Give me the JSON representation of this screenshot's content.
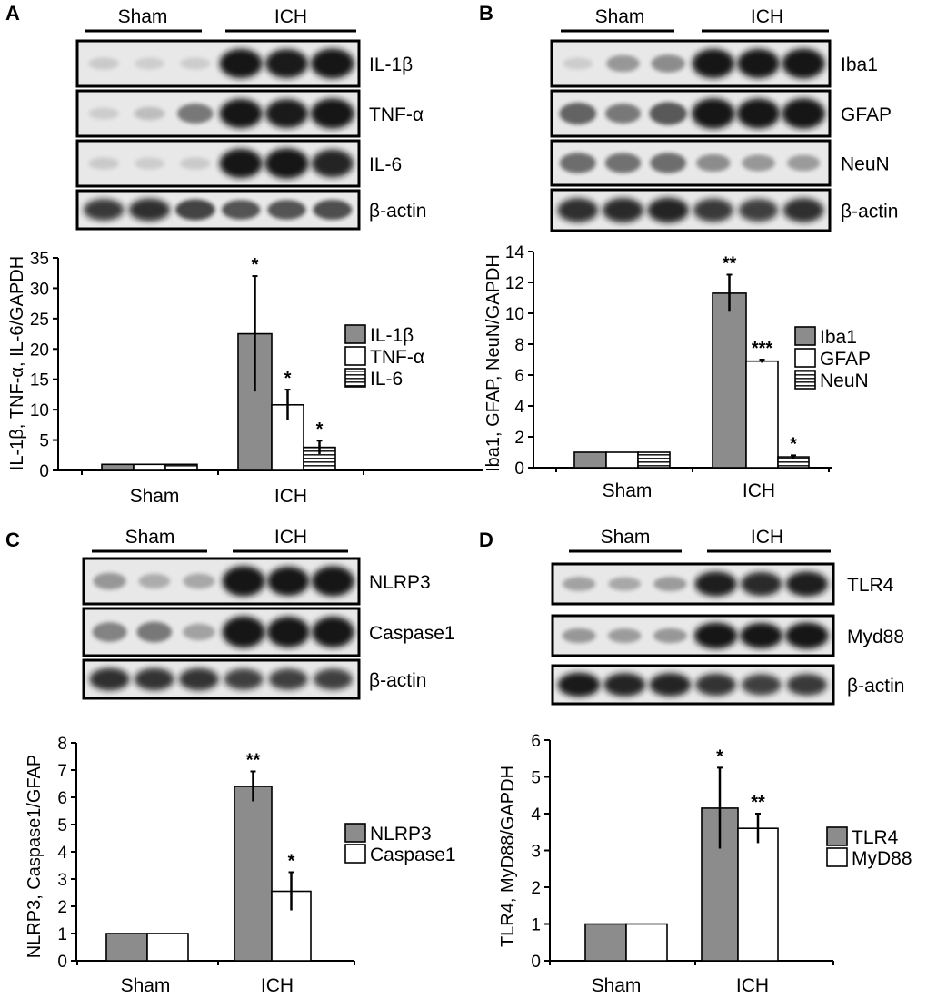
{
  "band_color": "#141414",
  "band_bg": "#e8e8e8",
  "panels": [
    {
      "letter": "A",
      "group_labels": [
        "Sham",
        "ICH"
      ],
      "blot_rows": [
        {
          "label": "IL-1β",
          "intensity": [
            0.06,
            0.04,
            0.05,
            0.92,
            0.9,
            0.95
          ]
        },
        {
          "label": "TNF-α",
          "intensity": [
            0.05,
            0.12,
            0.45,
            0.92,
            0.9,
            0.97
          ]
        },
        {
          "label": "IL-6",
          "intensity": [
            0.06,
            0.05,
            0.06,
            0.92,
            0.98,
            0.85
          ]
        },
        {
          "label": "β-actin",
          "intensity": [
            0.75,
            0.8,
            0.7,
            0.62,
            0.62,
            0.65
          ]
        }
      ]
    },
    {
      "letter": "B",
      "group_labels": [
        "Sham",
        "ICH"
      ],
      "blot_rows": [
        {
          "label": "Iba1",
          "intensity": [
            0.05,
            0.3,
            0.35,
            0.92,
            0.92,
            0.95
          ]
        },
        {
          "label": "GFAP",
          "intensity": [
            0.55,
            0.45,
            0.6,
            0.98,
            0.96,
            0.98
          ]
        },
        {
          "label": "NeuN",
          "intensity": [
            0.5,
            0.48,
            0.5,
            0.35,
            0.3,
            0.28
          ]
        },
        {
          "label": "β-actin",
          "intensity": [
            0.8,
            0.82,
            0.85,
            0.75,
            0.72,
            0.8
          ]
        }
      ]
    },
    {
      "letter": "C",
      "group_labels": [
        "Sham",
        "ICH"
      ],
      "blot_rows": [
        {
          "label": "NLRP3",
          "intensity": [
            0.3,
            0.2,
            0.22,
            0.98,
            0.92,
            0.97
          ]
        },
        {
          "label": "Caspase1",
          "intensity": [
            0.4,
            0.45,
            0.25,
            0.98,
            0.95,
            0.95
          ]
        },
        {
          "label": "β-actin",
          "intensity": [
            0.8,
            0.78,
            0.78,
            0.72,
            0.72,
            0.72
          ]
        }
      ]
    },
    {
      "letter": "D",
      "group_labels": [
        "Sham",
        "ICH"
      ],
      "blot_rows": [
        {
          "label": "TLR4",
          "intensity": [
            0.25,
            0.22,
            0.28,
            0.88,
            0.82,
            0.88
          ]
        },
        {
          "label": "Myd88",
          "intensity": [
            0.3,
            0.28,
            0.3,
            0.95,
            0.92,
            0.96
          ]
        },
        {
          "label": "β-actin",
          "intensity": [
            0.9,
            0.85,
            0.85,
            0.78,
            0.72,
            0.75
          ]
        }
      ]
    }
  ],
  "chart_data": [
    {
      "type": "bar",
      "panel": "A",
      "categories": [
        "Sham",
        "ICH"
      ],
      "ylabel": "IL-1β, TNF-α, IL-6/GAPDH",
      "ylim": [
        0,
        35
      ],
      "yticks": [
        0,
        5,
        10,
        15,
        20,
        25,
        30,
        35
      ],
      "legend_position": "right",
      "series": [
        {
          "name": "IL-1β",
          "fill": "gray",
          "values": [
            1,
            22.5
          ],
          "errors": [
            0,
            9.5
          ],
          "stars": [
            "",
            "*"
          ]
        },
        {
          "name": "TNF-α",
          "fill": "white",
          "values": [
            1,
            10.8
          ],
          "errors": [
            0,
            2.5
          ],
          "stars": [
            "",
            "*"
          ]
        },
        {
          "name": "IL-6",
          "fill": "hatched",
          "values": [
            1,
            3.8
          ],
          "errors": [
            0,
            1.1
          ],
          "stars": [
            "",
            "*"
          ]
        }
      ]
    },
    {
      "type": "bar",
      "panel": "B",
      "categories": [
        "Sham",
        "ICH"
      ],
      "ylabel": "Iba1, GFAP, NeuN/GAPDH",
      "ylim": [
        0,
        14
      ],
      "yticks": [
        0,
        2,
        4,
        6,
        8,
        10,
        12,
        14
      ],
      "legend_position": "right",
      "series": [
        {
          "name": "Iba1",
          "fill": "gray",
          "values": [
            1,
            11.3
          ],
          "errors": [
            0,
            1.2
          ],
          "stars": [
            "",
            "**"
          ]
        },
        {
          "name": "GFAP",
          "fill": "white",
          "values": [
            1,
            6.9
          ],
          "errors": [
            0,
            0.1
          ],
          "stars": [
            "",
            "***"
          ]
        },
        {
          "name": "NeuN",
          "fill": "hatched",
          "values": [
            1,
            0.7
          ],
          "errors": [
            0,
            0.1
          ],
          "stars": [
            "",
            "*"
          ]
        }
      ]
    },
    {
      "type": "bar",
      "panel": "C",
      "categories": [
        "Sham",
        "ICH"
      ],
      "ylabel": "NLRP3, Caspase1/GFAP",
      "ylim": [
        0,
        8
      ],
      "yticks": [
        0,
        1,
        2,
        3,
        4,
        5,
        6,
        7,
        8
      ],
      "legend_position": "right",
      "series": [
        {
          "name": "NLRP3",
          "fill": "gray",
          "values": [
            1,
            6.4
          ],
          "errors": [
            0,
            0.55
          ],
          "stars": [
            "",
            "**"
          ]
        },
        {
          "name": "Caspase1",
          "fill": "white",
          "values": [
            1,
            2.55
          ],
          "errors": [
            0,
            0.7
          ],
          "stars": [
            "",
            "*"
          ]
        }
      ]
    },
    {
      "type": "bar",
      "panel": "D",
      "categories": [
        "Sham",
        "ICH"
      ],
      "ylabel": "TLR4, MyD88/GAPDH",
      "ylim": [
        0,
        6
      ],
      "yticks": [
        0,
        1,
        2,
        3,
        4,
        5,
        6
      ],
      "legend_position": "right",
      "series": [
        {
          "name": "TLR4",
          "fill": "gray",
          "values": [
            1,
            4.15
          ],
          "errors": [
            0,
            1.1
          ],
          "stars": [
            "",
            "*"
          ]
        },
        {
          "name": "MyD88",
          "fill": "white",
          "values": [
            1,
            3.6
          ],
          "errors": [
            0,
            0.4
          ],
          "stars": [
            "",
            "**"
          ]
        }
      ]
    }
  ]
}
